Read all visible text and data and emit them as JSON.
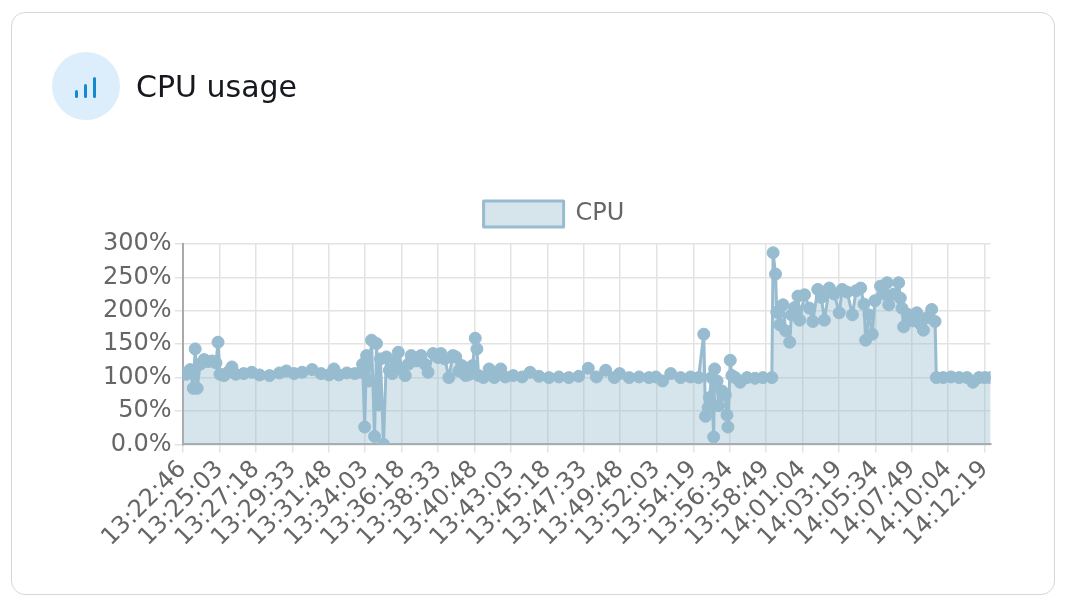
{
  "chart_data": {
    "type": "area",
    "title": "CPU usage",
    "x": [
      13.37944,
      13.3832,
      13.3873,
      13.3904,
      13.3924,
      13.3944,
      13.3975,
      13.4016,
      13.4057,
      13.4097,
      13.4138,
      13.4159,
      13.4179,
      13.422,
      13.4261,
      13.4302,
      13.4342,
      13.4424,
      13.4506,
      13.4587,
      13.4689,
      13.4791,
      13.4863,
      13.4944,
      13.5026,
      13.5128,
      13.522,
      13.5301,
      13.5352,
      13.5403,
      13.5485,
      13.5567,
      13.5628,
      13.5648,
      13.5669,
      13.5689,
      13.571,
      13.574,
      13.5771,
      13.5791,
      13.5812,
      13.5832,
      13.5863,
      13.5893,
      13.5924,
      13.5954,
      13.5985,
      13.6016,
      13.6046,
      13.6087,
      13.6118,
      13.6148,
      13.6199,
      13.625,
      13.6291,
      13.6322,
      13.6373,
      13.6424,
      13.6454,
      13.6495,
      13.6536,
      13.6577,
      13.6607,
      13.6638,
      13.6669,
      13.6709,
      13.675,
      13.6781,
      13.6808,
      13.6825,
      13.6842,
      13.6893,
      13.6951,
      13.7005,
      13.707,
      13.7118,
      13.7199,
      13.7291,
      13.7373,
      13.7464,
      13.7566,
      13.7669,
      13.7771,
      13.7873,
      13.7972,
      13.8056,
      13.8151,
      13.824,
      13.8294,
      13.8393,
      13.8495,
      13.8597,
      13.8668,
      13.8737,
      13.8821,
      13.8923,
      13.9025,
      13.9107,
      13.9161,
      13.9179,
      13.9206,
      13.9219,
      13.924,
      13.9263,
      13.9273,
      13.9298,
      13.9314,
      13.9349,
      13.9383,
      13.94,
      13.941,
      13.9434,
      13.9451,
      13.9485,
      13.9536,
      13.9607,
      13.9689,
      13.977,
      13.9862,
      13.9875,
      13.99,
      13.9913,
      13.9944,
      13.9977,
      14.0005,
      14.0046,
      14.0063,
      14.0097,
      14.0131,
      14.0148,
      14.0199,
      14.025,
      14.0284,
      14.0335,
      14.0372,
      14.0403,
      14.0454,
      14.0505,
      14.0556,
      14.0587,
      14.0638,
      14.0692,
      14.0729,
      14.0777,
      14.0811,
      14.0828,
      14.0862,
      14.0896,
      14.0923,
      14.0981,
      14.1015,
      14.1049,
      14.1066,
      14.1117,
      14.1168,
      14.1185,
      14.1202,
      14.1219,
      14.126,
      14.1311,
      14.1355,
      14.1393,
      14.1423,
      14.1464,
      14.1508,
      14.1543,
      14.1556,
      14.1627,
      14.1709,
      14.1791,
      14.1872,
      14.1933,
      14.1995,
      14.2056,
      14.2114
    ],
    "series": [
      {
        "name": "CPU",
        "color": "#98bccf",
        "values": [
          107,
          105,
          112,
          84,
          143,
          84,
          120,
          127,
          124,
          125,
          122,
          153,
          105,
          103,
          108,
          116,
          105,
          106,
          108,
          104,
          103,
          107,
          110,
          106,
          108,
          112,
          106,
          104,
          113,
          104,
          107,
          106,
          108,
          120,
          26,
          133,
          95,
          156,
          12,
          151,
          59,
          128,
          0,
          131,
          111,
          106,
          125,
          138,
          113,
          103,
          120,
          133,
          125,
          133,
          120,
          108,
          136,
          130,
          136,
          128,
          100,
          133,
          131,
          110,
          118,
          103,
          105,
          118,
          159,
          143,
          103,
          100,
          113,
          100,
          113,
          101,
          103,
          101,
          108,
          102,
          100,
          101,
          100,
          102,
          114,
          101,
          111,
          100,
          106,
          100,
          101,
          100,
          101,
          95,
          106,
          100,
          101,
          100,
          165,
          42,
          55,
          70,
          100,
          11,
          113,
          95,
          58,
          80,
          74,
          44,
          26,
          126,
          103,
          100,
          93,
          100,
          99,
          100,
          100,
          287,
          255,
          198,
          179,
          209,
          170,
          153,
          194,
          205,
          222,
          186,
          224,
          204,
          184,
          232,
          220,
          186,
          234,
          225,
          197,
          232,
          228,
          194,
          230,
          234,
          210,
          156,
          194,
          165,
          215,
          237,
          225,
          242,
          209,
          225,
          242,
          219,
          204,
          176,
          195,
          185,
          197,
          180,
          171,
          190,
          202,
          184,
          100,
          100,
          101,
          100,
          100,
          93,
          100,
          100,
          100
        ]
      }
    ],
    "xlim": [
      13.37944,
      14.2114
    ],
    "xticks": [
      {
        "value": 13.37944,
        "label": "13:22:46"
      },
      {
        "value": 13.4175,
        "label": "13:25:03"
      },
      {
        "value": 13.455,
        "label": "13:27:18"
      },
      {
        "value": 13.4925,
        "label": "13:29:33"
      },
      {
        "value": 13.53,
        "label": "13:31:48"
      },
      {
        "value": 13.5675,
        "label": "13:34:03"
      },
      {
        "value": 13.605,
        "label": "13:36:18"
      },
      {
        "value": 13.6425,
        "label": "13:38:33"
      },
      {
        "value": 13.68,
        "label": "13:40:48"
      },
      {
        "value": 13.7175,
        "label": "13:43:03"
      },
      {
        "value": 13.755,
        "label": "13:45:18"
      },
      {
        "value": 13.7925,
        "label": "13:47:33"
      },
      {
        "value": 13.83,
        "label": "13:49:48"
      },
      {
        "value": 13.8675,
        "label": "13:52:03"
      },
      {
        "value": 13.90528,
        "label": "13:54:19"
      },
      {
        "value": 13.94278,
        "label": "13:56:34"
      },
      {
        "value": 13.98028,
        "label": "13:58:49"
      },
      {
        "value": 14.01778,
        "label": "14:01:04"
      },
      {
        "value": 14.05528,
        "label": "14:03:19"
      },
      {
        "value": 14.09278,
        "label": "14:05:34"
      },
      {
        "value": 14.13028,
        "label": "14:07:49"
      },
      {
        "value": 14.16778,
        "label": "14:10:04"
      },
      {
        "value": 14.20528,
        "label": "14:12:19"
      }
    ],
    "ylim": [
      0,
      300
    ],
    "yticks": [
      {
        "value": 0,
        "label": "0.0%"
      },
      {
        "value": 50,
        "label": "50%"
      },
      {
        "value": 100,
        "label": "100%"
      },
      {
        "value": 150,
        "label": "150%"
      },
      {
        "value": 200,
        "label": "200%"
      },
      {
        "value": 250,
        "label": "250%"
      },
      {
        "value": 300,
        "label": "300%"
      }
    ],
    "grid": true,
    "legend": "top",
    "marker": "circle",
    "line_style": "solid"
  }
}
